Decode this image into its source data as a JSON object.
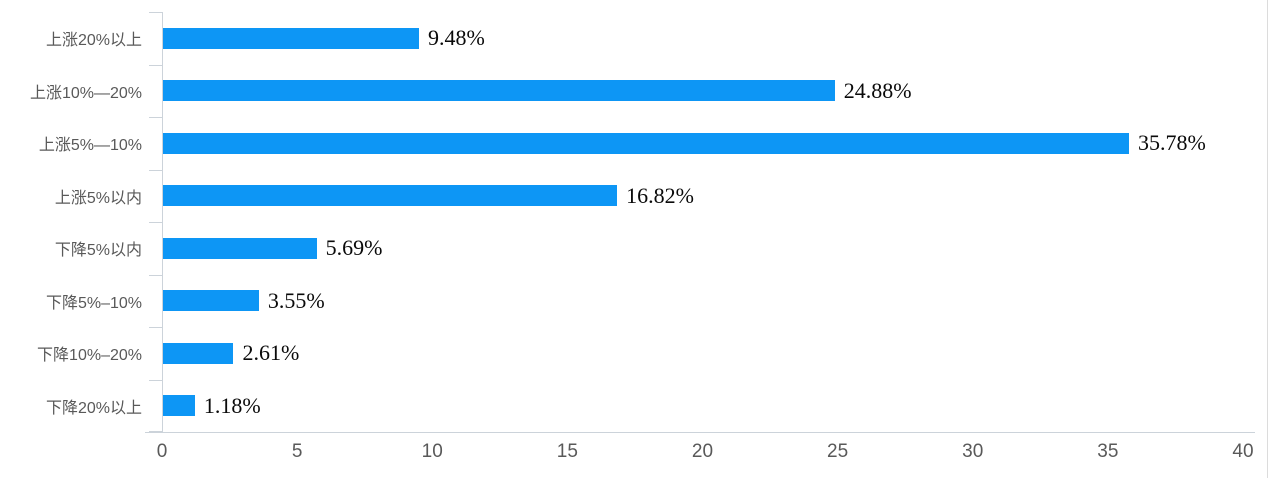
{
  "chart_data": {
    "type": "bar",
    "orientation": "horizontal",
    "title": "",
    "xlabel": "",
    "ylabel": "",
    "categories": [
      "上涨20%以上",
      "上涨10%—20%",
      "上涨5%—10%",
      "上涨5%以内",
      "下降5%以内",
      "下降5%–10%",
      "下降10%–20%",
      "下降20%以上"
    ],
    "values": [
      9.48,
      24.88,
      35.78,
      16.82,
      5.69,
      3.55,
      2.61,
      1.18
    ],
    "value_labels": [
      "9.48%",
      "24.88%",
      "35.78%",
      "16.82%",
      "5.69%",
      "3.55%",
      "2.61%",
      "1.18%"
    ],
    "xlim": [
      0,
      40
    ],
    "x_ticks": [
      "0",
      "5",
      "10",
      "15",
      "20",
      "25",
      "30",
      "35",
      "40"
    ],
    "grid": "off",
    "legend": "none",
    "colors": {
      "bar": "#0d96f5",
      "axis": "#ccd3da",
      "category_label": "#595959",
      "tick_label": "#595959",
      "value_label": "#0a0a0a"
    }
  }
}
